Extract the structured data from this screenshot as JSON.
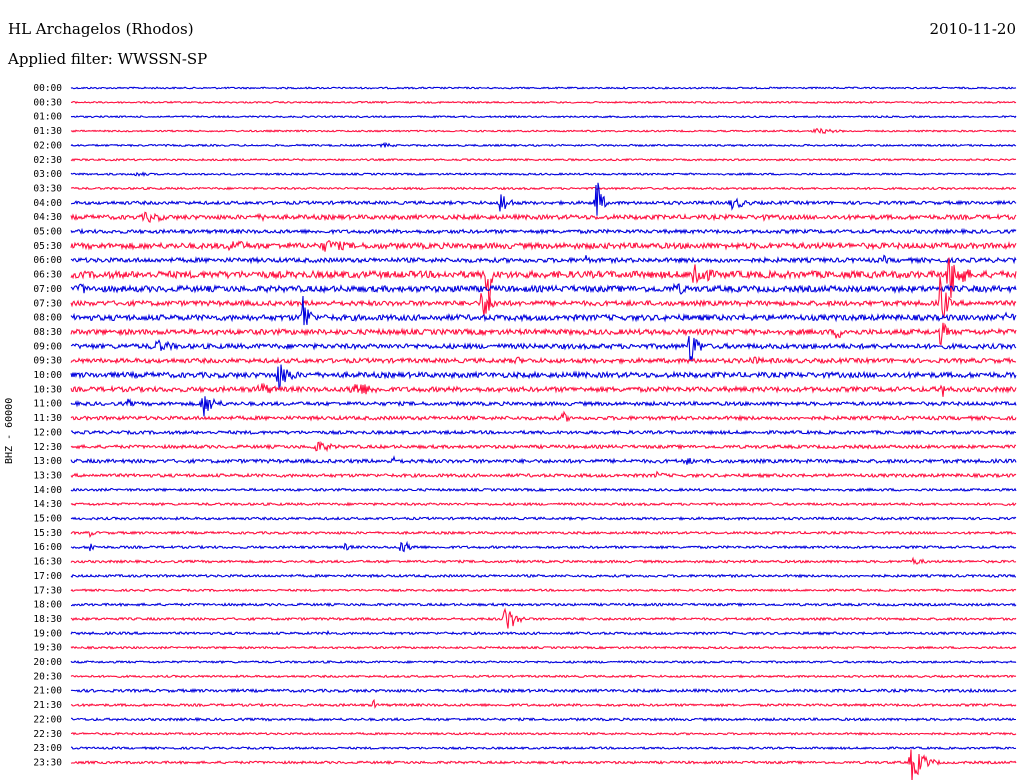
{
  "header": {
    "station": "HL Archagelos (Rhodos)",
    "date": "2010-11-20",
    "filter": "Applied filter: WWSSN-SP"
  },
  "colors": {
    "blue": "#0000dd",
    "red": "#ff1040"
  },
  "chart_data": {
    "type": "line",
    "title": "HL Archagelos (Rhodos)",
    "subtitle": "Applied filter: WWSSN-SP",
    "ylabel": "BHZ - 60000",
    "xlabel": "",
    "grid": false,
    "row_labels": [
      "00:00",
      "00:30",
      "01:00",
      "01:30",
      "02:00",
      "02:30",
      "03:00",
      "03:30",
      "04:00",
      "04:30",
      "05:00",
      "05:30",
      "06:00",
      "06:30",
      "07:00",
      "07:30",
      "08:00",
      "08:30",
      "09:00",
      "09:30",
      "10:00",
      "10:30",
      "11:00",
      "11:30",
      "12:00",
      "12:30",
      "13:00",
      "13:30",
      "14:00",
      "14:30",
      "15:00",
      "15:30",
      "16:00",
      "16:30",
      "17:00",
      "17:30",
      "18:00",
      "18:30",
      "19:00",
      "19:30",
      "20:00",
      "20:30",
      "21:00",
      "21:30",
      "22:00",
      "22:30",
      "23:00",
      "23:30"
    ],
    "trace_colors": [
      "blue",
      "red"
    ],
    "row_noise": [
      0.8,
      0.8,
      0.8,
      0.8,
      0.9,
      0.9,
      0.9,
      1.0,
      1.6,
      2.2,
      1.8,
      2.8,
      2.2,
      3.4,
      3.0,
      2.4,
      2.8,
      2.6,
      2.4,
      2.2,
      2.6,
      2.4,
      1.8,
      1.8,
      1.6,
      1.6,
      1.8,
      1.6,
      1.2,
      1.2,
      1.2,
      1.2,
      1.2,
      1.2,
      1.2,
      1.0,
      1.2,
      1.2,
      1.2,
      1.0,
      1.0,
      1.0,
      1.4,
      1.2,
      1.2,
      1.0,
      1.0,
      1.2
    ],
    "events": [
      {
        "row": 3,
        "t": 0.79,
        "amp": 3,
        "dur": 0.06
      },
      {
        "row": 4,
        "t": 0.33,
        "amp": 3,
        "dur": 0.03
      },
      {
        "row": 6,
        "t": 0.07,
        "amp": 3,
        "dur": 0.03
      },
      {
        "row": 8,
        "t": 0.455,
        "amp": 14,
        "dur": 0.02
      },
      {
        "row": 8,
        "t": 0.555,
        "amp": 40,
        "dur": 0.012
      },
      {
        "row": 8,
        "t": 0.7,
        "amp": 7,
        "dur": 0.04
      },
      {
        "row": 9,
        "t": 0.08,
        "amp": 6,
        "dur": 0.06
      },
      {
        "row": 9,
        "t": 0.2,
        "amp": 4,
        "dur": 0.04
      },
      {
        "row": 9,
        "t": 0.73,
        "amp": 4,
        "dur": 0.03
      },
      {
        "row": 11,
        "t": 0.17,
        "amp": 7,
        "dur": 0.06
      },
      {
        "row": 11,
        "t": 0.27,
        "amp": 7,
        "dur": 0.08
      },
      {
        "row": 12,
        "t": 0.545,
        "amp": 6,
        "dur": 0.01
      },
      {
        "row": 12,
        "t": 0.86,
        "amp": 5,
        "dur": 0.02
      },
      {
        "row": 13,
        "t": 0.44,
        "amp": 60,
        "dur": 0.01
      },
      {
        "row": 13,
        "t": 0.66,
        "amp": 20,
        "dur": 0.03
      },
      {
        "row": 13,
        "t": 0.93,
        "amp": 28,
        "dur": 0.03
      },
      {
        "row": 14,
        "t": 0.01,
        "amp": 8,
        "dur": 0.02
      },
      {
        "row": 14,
        "t": 0.41,
        "amp": 10,
        "dur": 0.01
      },
      {
        "row": 14,
        "t": 0.64,
        "amp": 8,
        "dur": 0.03
      },
      {
        "row": 15,
        "t": 0.435,
        "amp": 18,
        "dur": 0.025
      },
      {
        "row": 15,
        "t": 0.92,
        "amp": 40,
        "dur": 0.012
      },
      {
        "row": 16,
        "t": 0.245,
        "amp": 30,
        "dur": 0.015
      },
      {
        "row": 16,
        "t": 0.99,
        "amp": 10,
        "dur": 0.02
      },
      {
        "row": 17,
        "t": 0.81,
        "amp": 8,
        "dur": 0.03
      },
      {
        "row": 17,
        "t": 0.92,
        "amp": 14,
        "dur": 0.02
      },
      {
        "row": 18,
        "t": 0.09,
        "amp": 7,
        "dur": 0.06
      },
      {
        "row": 18,
        "t": 0.655,
        "amp": 22,
        "dur": 0.02
      },
      {
        "row": 19,
        "t": 0.47,
        "amp": 5,
        "dur": 0.03
      },
      {
        "row": 19,
        "t": 0.72,
        "amp": 5,
        "dur": 0.04
      },
      {
        "row": 20,
        "t": 0.22,
        "amp": 16,
        "dur": 0.03
      },
      {
        "row": 21,
        "t": 0.2,
        "amp": 8,
        "dur": 0.04
      },
      {
        "row": 21,
        "t": 0.3,
        "amp": 9,
        "dur": 0.06
      },
      {
        "row": 21,
        "t": 0.92,
        "amp": 14,
        "dur": 0.012
      },
      {
        "row": 22,
        "t": 0.06,
        "amp": 5,
        "dur": 0.02
      },
      {
        "row": 22,
        "t": 0.14,
        "amp": 14,
        "dur": 0.03
      },
      {
        "row": 23,
        "t": 0.52,
        "amp": 8,
        "dur": 0.015
      },
      {
        "row": 25,
        "t": 0.26,
        "amp": 6,
        "dur": 0.05
      },
      {
        "row": 26,
        "t": 0.34,
        "amp": 5,
        "dur": 0.03
      },
      {
        "row": 26,
        "t": 0.65,
        "amp": 5,
        "dur": 0.03
      },
      {
        "row": 27,
        "t": 0.62,
        "amp": 4,
        "dur": 0.03
      },
      {
        "row": 31,
        "t": 0.02,
        "amp": 5,
        "dur": 0.01
      },
      {
        "row": 32,
        "t": 0.02,
        "amp": 8,
        "dur": 0.01
      },
      {
        "row": 32,
        "t": 0.29,
        "amp": 4,
        "dur": 0.02
      },
      {
        "row": 32,
        "t": 0.35,
        "amp": 7,
        "dur": 0.03
      },
      {
        "row": 33,
        "t": 0.89,
        "amp": 4,
        "dur": 0.04
      },
      {
        "row": 37,
        "t": 0.46,
        "amp": 16,
        "dur": 0.025
      },
      {
        "row": 38,
        "t": 0.27,
        "amp": 5,
        "dur": 0.01
      },
      {
        "row": 43,
        "t": 0.32,
        "amp": 6,
        "dur": 0.01
      },
      {
        "row": 47,
        "t": 0.89,
        "amp": 20,
        "dur": 0.03
      }
    ]
  }
}
